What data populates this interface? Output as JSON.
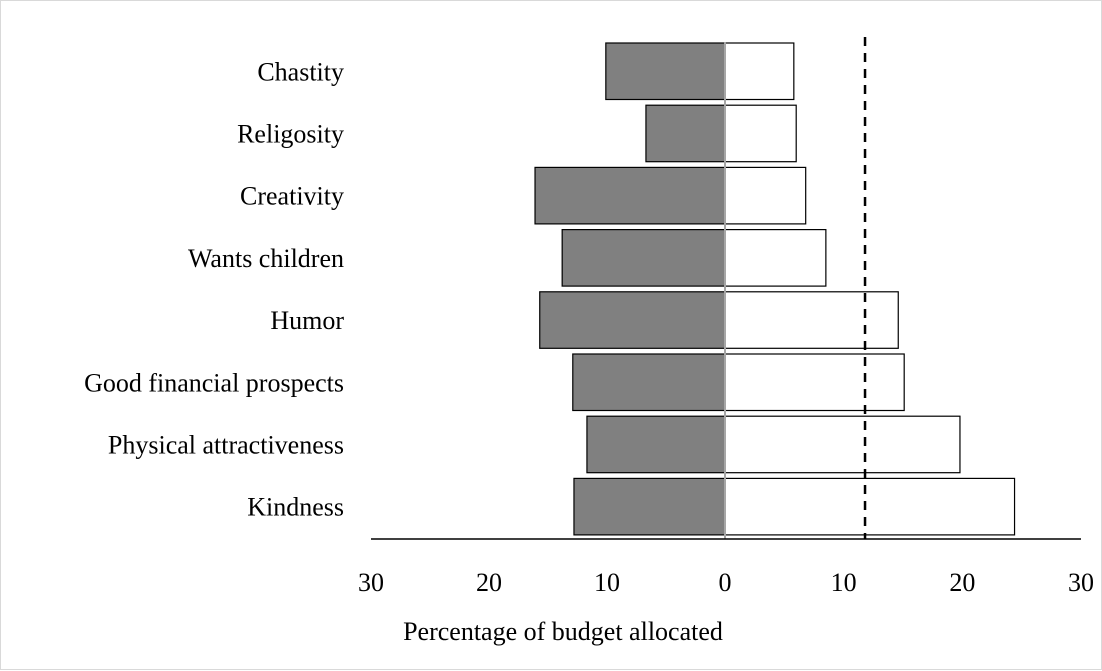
{
  "chart_data": {
    "type": "bar",
    "orientation": "horizontal",
    "layout": "diverging",
    "categories": [
      "Chastity",
      "Religosity",
      "Creativity",
      "Wants children",
      "Humor",
      "Good financial prospects",
      "Physical attractiveness",
      "Kindness"
    ],
    "series": [
      {
        "side": "left",
        "values": [
          10.1,
          6.7,
          16.1,
          13.8,
          15.7,
          12.9,
          11.7,
          12.8
        ],
        "color": "#808080"
      },
      {
        "side": "right",
        "values": [
          5.8,
          6.0,
          6.8,
          8.5,
          14.6,
          15.1,
          19.8,
          24.4
        ],
        "color": "#ffffff"
      }
    ],
    "reference_line": {
      "value": 11.8,
      "style": "dashed",
      "side": "right"
    },
    "xlim": [
      -30,
      30
    ],
    "xticks": [
      -30,
      -20,
      -10,
      0,
      10,
      20,
      30
    ],
    "xtick_labels": [
      "30",
      "20",
      "10",
      "0",
      "10",
      "20",
      "30"
    ],
    "xlabel": "Percentage of budget allocated",
    "ylabel": "",
    "title": "",
    "grid": false,
    "legend": "none"
  }
}
